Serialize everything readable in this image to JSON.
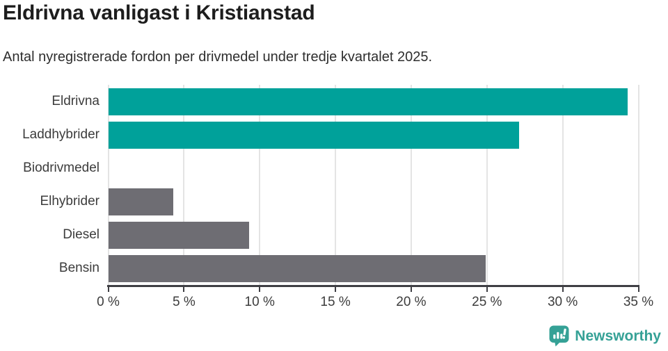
{
  "header": {
    "title": "Eldrivna vanligast i Kristianstad",
    "subtitle": "Antal nyregistrerade fordon per drivmedel under tredje kvartalet 2025."
  },
  "chart_data": {
    "type": "bar",
    "orientation": "horizontal",
    "title": "Eldrivna vanligast i Kristianstad",
    "subtitle": "Antal nyregistrerade fordon per drivmedel under tredje kvartalet 2025.",
    "categories": [
      "Eldrivna",
      "Laddhybrider",
      "Biodrivmedel",
      "Elhybrider",
      "Diesel",
      "Bensin"
    ],
    "values": [
      34.3,
      27.1,
      0,
      4.3,
      9.3,
      24.9
    ],
    "unit": "%",
    "xlabel": "",
    "ylabel": "",
    "xlim": [
      0,
      35
    ],
    "x_ticks": [
      0,
      5,
      10,
      15,
      20,
      25,
      30,
      35
    ],
    "x_tick_labels": [
      "0 %",
      "5 %",
      "10 %",
      "15 %",
      "20 %",
      "25 %",
      "30 %",
      "35 %"
    ],
    "grid": true,
    "legend": false,
    "bar_colors": [
      "#00a19a",
      "#00a19a",
      "#6e6d73",
      "#6e6d73",
      "#6e6d73",
      "#6e6d73"
    ]
  },
  "colors": {
    "highlight_teal": "#00a19a",
    "neutral_gray": "#6e6d73",
    "axis": "#3f3f44",
    "gridline": "#e4e4e4",
    "brand_teal": "#35a196"
  },
  "footer": {
    "brand": "Newsworthy",
    "logo_icon": "speech-bubble-bar-chart-icon"
  }
}
